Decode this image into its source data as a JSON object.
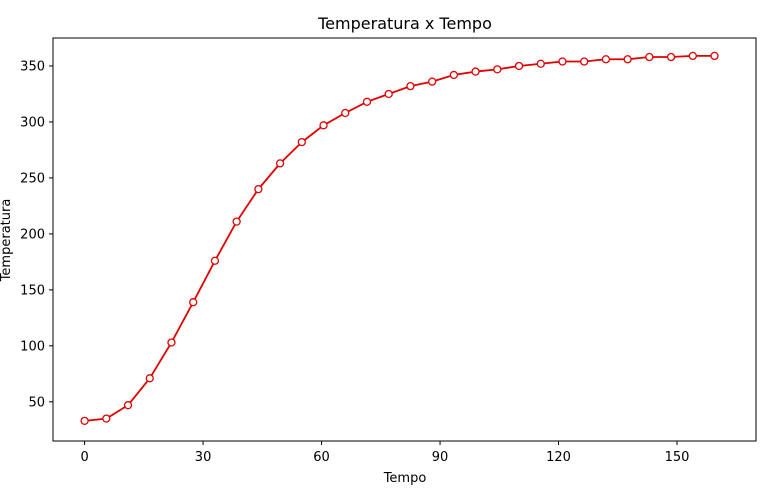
{
  "chart_data": {
    "type": "line",
    "title": "Temperatura x Tempo",
    "xlabel": "Tempo",
    "ylabel": "Temperatura",
    "xlim": [
      -8,
      170
    ],
    "ylim": [
      15,
      375
    ],
    "xticks": [
      0,
      30,
      60,
      90,
      120,
      150
    ],
    "yticks": [
      50,
      100,
      150,
      200,
      250,
      300,
      350
    ],
    "grid": false,
    "legend": false,
    "colors": {
      "line": "#e00000",
      "marker_fill": "#ffffff",
      "marker_edge": "#e00000"
    },
    "series": [
      {
        "x": [
          0,
          5.5,
          11,
          16.5,
          22,
          27.5,
          33,
          38.5,
          44,
          49.5,
          55,
          60.5,
          66,
          71.5,
          77,
          82.5,
          88,
          93.5,
          99,
          104.5,
          110,
          115.5,
          121,
          126.5,
          132,
          137.5,
          143,
          148.5,
          154,
          159.5
        ],
        "y": [
          33,
          35,
          47,
          71,
          103,
          139,
          176,
          211,
          240,
          263,
          282,
          297,
          308,
          318,
          325,
          332,
          336,
          342,
          345,
          347,
          350,
          352,
          354,
          354,
          356,
          356,
          358,
          358,
          359,
          359
        ]
      }
    ]
  }
}
